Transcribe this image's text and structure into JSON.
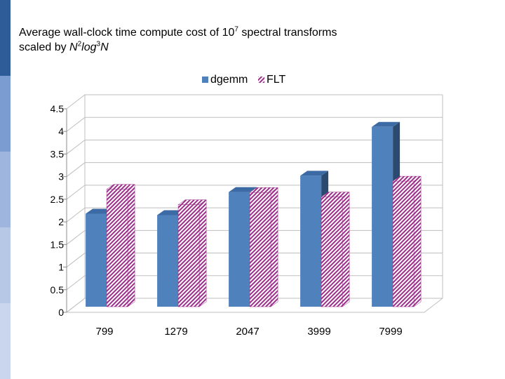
{
  "slide": {
    "title_part1": "Average wall-clock time compute cost of 10",
    "title_sup1": "7",
    "title_part2": " spectral transforms",
    "title_line2_prefix": "scaled by ",
    "title_N": "N",
    "title_sup2": "2",
    "title_log": "log",
    "title_sup3": "3",
    "title_N2": "N"
  },
  "colors": {
    "dgemm": "#4f81bd",
    "dgemm_dark": "#2b4a70",
    "flt": "#9b2f8a",
    "stripe": [
      "#2e5c99",
      "#7a9cd0",
      "#9eb6de",
      "#b7c8e6",
      "#c9d6ee"
    ]
  },
  "chart_data": {
    "type": "bar",
    "categories": [
      "799",
      "1279",
      "2047",
      "3999",
      "7999"
    ],
    "series": [
      {
        "name": "dgemm",
        "values": [
          2.18,
          2.15,
          2.66,
          3.02,
          4.1
        ]
      },
      {
        "name": "FLT",
        "values": [
          2.72,
          2.38,
          2.65,
          2.55,
          2.9
        ]
      }
    ],
    "yticks": [
      "0",
      "0.5",
      "1",
      "1.5",
      "2",
      "2.5",
      "3",
      "3.5",
      "4",
      "4.5"
    ],
    "ylim": [
      0,
      4.5
    ],
    "legend_position": "top",
    "grid": true
  }
}
